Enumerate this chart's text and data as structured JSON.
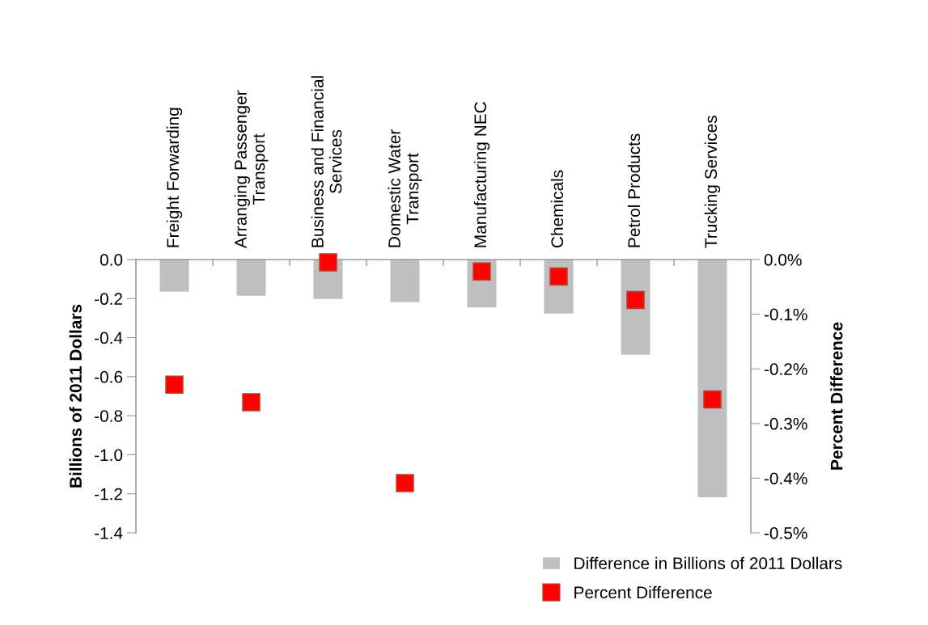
{
  "chart_data": {
    "type": "bar",
    "categories": [
      "Freight Forwarding",
      "Arranging Passenger\nTransport",
      "Business and Financial\nServices",
      "Domestic Water\nTransport",
      "Manufacturing NEC",
      "Chemicals",
      "Petrol Products",
      "Trucking Services"
    ],
    "ylabel": "Billions of 2011 Dollars",
    "y2label": "Percent Difference",
    "series": [
      {
        "name": "Difference in Billions of 2011 Dollars",
        "color": "#bfbfbf",
        "values": [
          -0.165,
          -0.185,
          -0.202,
          -0.218,
          -0.245,
          -0.276,
          -0.488,
          -1.218
        ]
      },
      {
        "name": "Percent Difference",
        "type": "scatter",
        "axis": "y2",
        "marker": "square",
        "color": "#ff0000",
        "values": [
          -0.229,
          -0.261,
          -0.005,
          -0.409,
          -0.022,
          -0.031,
          -0.074,
          -0.256
        ]
      }
    ],
    "ylim": [
      -1.4,
      0
    ],
    "yticks": [
      {
        "value": 0,
        "label": "0.0"
      },
      {
        "value": -0.2,
        "label": "-0.2"
      },
      {
        "value": -0.4,
        "label": "-0.4"
      },
      {
        "value": -0.6,
        "label": "-0.6"
      },
      {
        "value": -0.8,
        "label": "-0.8"
      },
      {
        "value": -1.0,
        "label": "-1.0"
      },
      {
        "value": -1.2,
        "label": "-1.2"
      },
      {
        "value": -1.4,
        "label": "-1.4"
      }
    ],
    "y2lim": [
      -0.5,
      0
    ],
    "y2ticks": [
      {
        "value": 0,
        "label": "0.0%"
      },
      {
        "value": -0.1,
        "label": "-0.1%"
      },
      {
        "value": -0.2,
        "label": "-0.2%"
      },
      {
        "value": -0.3,
        "label": "-0.3%"
      },
      {
        "value": -0.4,
        "label": "-0.4%"
      },
      {
        "value": -0.5,
        "label": "-0.5%"
      }
    ],
    "grid": false,
    "legend": "bottom right"
  }
}
